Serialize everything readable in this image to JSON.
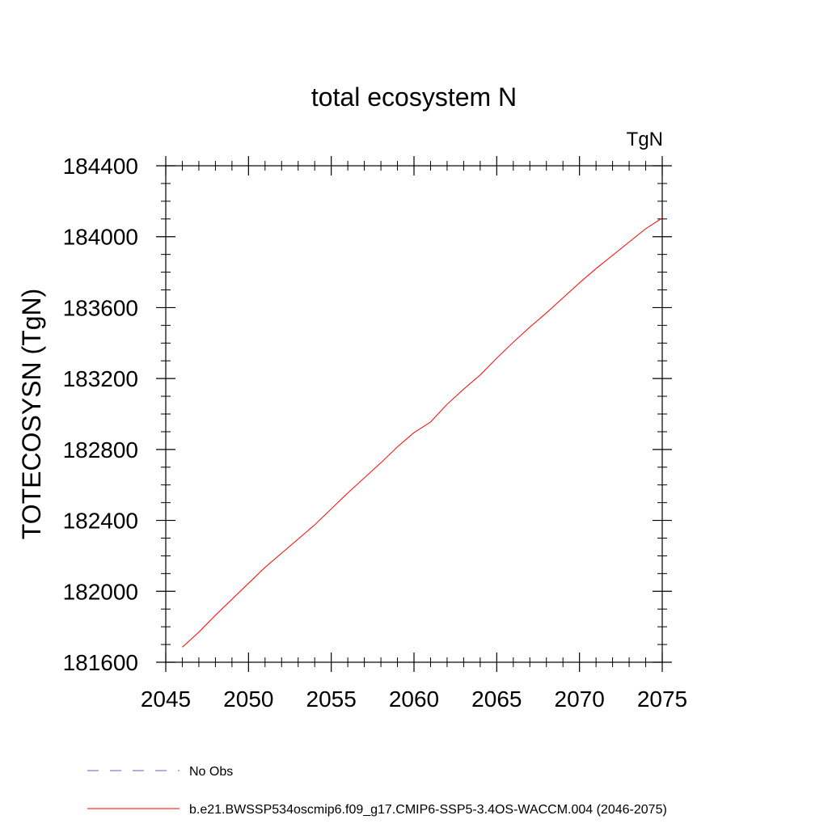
{
  "chart_data": {
    "type": "line",
    "title": "total ecosystem N",
    "units_label": "TgN",
    "xlabel": "",
    "ylabel": "TOTECOSYSN  (TgN)",
    "xlim": [
      2045,
      2075
    ],
    "ylim": [
      181600,
      184400
    ],
    "xticks": [
      2045,
      2050,
      2055,
      2060,
      2065,
      2070,
      2075
    ],
    "yticks": [
      181600,
      182000,
      182400,
      182800,
      183200,
      183600,
      184000,
      184400
    ],
    "grid": false,
    "legend_position": "bottom",
    "series": [
      {
        "name": "No Obs",
        "color": "#6a5acd",
        "dash": "dashed",
        "x": [],
        "y": []
      },
      {
        "name": "b.e21.BWSSP534oscmip6.f09_g17.CMIP6-SSP5-3.4OS-WACCM.004 (2046-2075)",
        "color": "#ff0000",
        "dash": "solid",
        "x": [
          2046,
          2047,
          2048,
          2049,
          2050,
          2051,
          2052,
          2053,
          2054,
          2055,
          2056,
          2057,
          2058,
          2059,
          2060,
          2061,
          2062,
          2063,
          2064,
          2065,
          2066,
          2067,
          2068,
          2069,
          2070,
          2071,
          2072,
          2073,
          2074,
          2075
        ],
        "y": [
          181685,
          181770,
          181865,
          181955,
          182045,
          182135,
          182215,
          182295,
          182375,
          182465,
          182555,
          182640,
          182725,
          182815,
          182895,
          182955,
          183055,
          183140,
          183220,
          183315,
          183405,
          183490,
          183570,
          183655,
          183740,
          183820,
          183895,
          183970,
          184045,
          184105
        ]
      }
    ]
  }
}
